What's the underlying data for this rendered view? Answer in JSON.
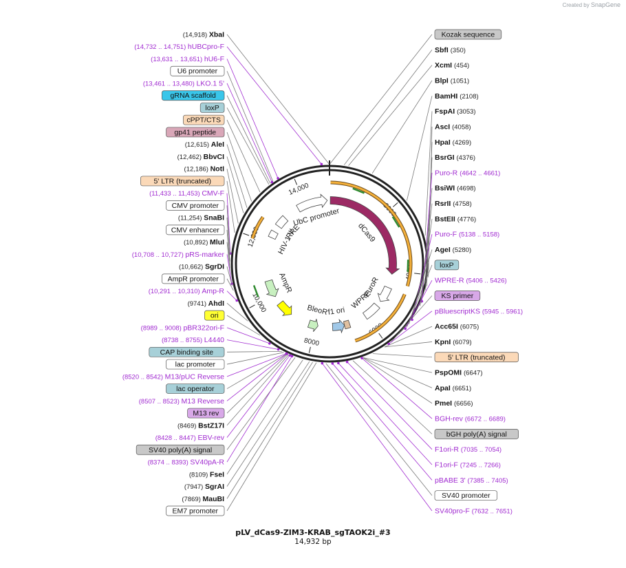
{
  "credit": {
    "prefix": "Created by",
    "brand": "SnapGene"
  },
  "title": "pLV_dCas9-ZIM3-KRAB_sgTAOK2i_#3",
  "length_label": "14,932 bp",
  "total_bp": 14932,
  "ruler_ticks": [
    {
      "label": "2000",
      "pos": 2000
    },
    {
      "label": "4000",
      "pos": 4000
    },
    {
      "label": "6000",
      "pos": 6000
    },
    {
      "label": "8000",
      "pos": 8000
    },
    {
      "label": "10,000",
      "pos": 10000
    },
    {
      "label": "12,000",
      "pos": 12000
    },
    {
      "label": "14,000",
      "pos": 14000
    }
  ],
  "labels": [
    {
      "name": "XbaI",
      "pos": "(14,918)",
      "bp": 14918,
      "kind": "enzyme",
      "side": "L"
    },
    {
      "name": "hUBCpro-F",
      "pos": "(14,732 .. 14,751)",
      "bp": 14741,
      "kind": "primer",
      "side": "L"
    },
    {
      "name": "hU6-F",
      "pos": "(13,631 .. 13,651)",
      "bp": 13641,
      "kind": "primer",
      "side": "L"
    },
    {
      "name": "U6 promoter",
      "bp": 13500,
      "kind": "box",
      "color": "#ffffff",
      "side": "L"
    },
    {
      "name": "LKO.1 5'",
      "pos": "(13,461 .. 13,480)",
      "bp": 13470,
      "kind": "primer",
      "side": "L"
    },
    {
      "name": "gRNA scaffold",
      "bp": 13420,
      "kind": "box",
      "color": "#39c6ea",
      "side": "L"
    },
    {
      "name": "loxP",
      "bp": 13380,
      "kind": "box",
      "color": "#a7d0d8",
      "side": "L"
    },
    {
      "name": "cPPT/CTS",
      "bp": 13100,
      "kind": "box",
      "color": "#fbd9b8",
      "side": "L"
    },
    {
      "name": "gp41 peptide",
      "bp": 12800,
      "kind": "box",
      "color": "#d9a7b8",
      "side": "L"
    },
    {
      "name": "AleI",
      "pos": "(12,615)",
      "bp": 12615,
      "kind": "enzyme",
      "side": "L"
    },
    {
      "name": "BbvCI",
      "pos": "(12,462)",
      "bp": 12462,
      "kind": "enzyme",
      "side": "L"
    },
    {
      "name": "NotI",
      "pos": "(12,186)",
      "bp": 12186,
      "kind": "enzyme",
      "side": "L"
    },
    {
      "name": "5' LTR (truncated)",
      "bp": 11950,
      "kind": "box",
      "color": "#fbd9b8",
      "side": "L"
    },
    {
      "name": "CMV-F",
      "pos": "(11,433 .. 11,453)",
      "bp": 11443,
      "kind": "primer",
      "side": "L"
    },
    {
      "name": "CMV promoter",
      "bp": 11400,
      "kind": "box",
      "color": "#ffffff",
      "side": "L"
    },
    {
      "name": "SnaBI",
      "pos": "(11,254)",
      "bp": 11254,
      "kind": "enzyme",
      "side": "L"
    },
    {
      "name": "CMV enhancer",
      "bp": 11100,
      "kind": "box",
      "color": "#ffffff",
      "side": "L"
    },
    {
      "name": "MluI",
      "pos": "(10,892)",
      "bp": 10892,
      "kind": "enzyme",
      "side": "L"
    },
    {
      "name": "pRS-marker",
      "pos": "(10,708 .. 10,727)",
      "bp": 10717,
      "kind": "primer",
      "side": "L"
    },
    {
      "name": "SgrDI",
      "pos": "(10,662)",
      "bp": 10662,
      "kind": "enzyme",
      "side": "L"
    },
    {
      "name": "AmpR promoter",
      "bp": 10550,
      "kind": "box",
      "color": "#ffffff",
      "side": "L"
    },
    {
      "name": "Amp-R",
      "pos": "(10,291 .. 10,310)",
      "bp": 10300,
      "kind": "primer",
      "side": "L"
    },
    {
      "name": "AhdI",
      "pos": "(9741)",
      "bp": 9741,
      "kind": "enzyme",
      "side": "L"
    },
    {
      "name": "ori",
      "bp": 9300,
      "kind": "box",
      "color": "#ffff33",
      "side": "L"
    },
    {
      "name": "pBR322ori-F",
      "pos": "(8989 .. 9008)",
      "bp": 8998,
      "kind": "primer",
      "side": "L"
    },
    {
      "name": "L4440",
      "pos": "(8738 .. 8755)",
      "bp": 8746,
      "kind": "primer",
      "side": "L"
    },
    {
      "name": "CAP binding site",
      "bp": 8650,
      "kind": "box",
      "color": "#a7d0d8",
      "side": "L"
    },
    {
      "name": "lac promoter",
      "bp": 8600,
      "kind": "box",
      "color": "#ffffff",
      "side": "L"
    },
    {
      "name": "M13/pUC Reverse",
      "pos": "(8520 .. 8542)",
      "bp": 8531,
      "kind": "primer",
      "side": "L"
    },
    {
      "name": "lac operator",
      "bp": 8520,
      "kind": "box",
      "color": "#a7d0d8",
      "side": "L"
    },
    {
      "name": "M13 Reverse",
      "pos": "(8507 .. 8523)",
      "bp": 8515,
      "kind": "primer",
      "side": "L"
    },
    {
      "name": "M13 rev",
      "bp": 8500,
      "kind": "box",
      "color": "#d8a8e8",
      "side": "L"
    },
    {
      "name": "BstZ17I",
      "pos": "(8469)",
      "bp": 8469,
      "kind": "enzyme",
      "side": "L"
    },
    {
      "name": "EBV-rev",
      "pos": "(8428 .. 8447)",
      "bp": 8437,
      "kind": "primer",
      "side": "L"
    },
    {
      "name": "SV40 poly(A) signal",
      "bp": 8300,
      "kind": "box",
      "color": "#c8c8c8",
      "side": "L"
    },
    {
      "name": "SV40pA-R",
      "pos": "(8374 .. 8393)",
      "bp": 8383,
      "kind": "primer",
      "side": "L"
    },
    {
      "name": "FseI",
      "pos": "(8109)",
      "bp": 8109,
      "kind": "enzyme",
      "side": "L"
    },
    {
      "name": "SgrAI",
      "pos": "(7947)",
      "bp": 7947,
      "kind": "enzyme",
      "side": "L"
    },
    {
      "name": "MauBI",
      "pos": "(7869)",
      "bp": 7869,
      "kind": "enzyme",
      "side": "L"
    },
    {
      "name": "EM7 promoter",
      "bp": 7780,
      "kind": "box",
      "color": "#ffffff",
      "side": "L"
    },
    {
      "name": "SV40pro-F",
      "pos": "(7632 .. 7651)",
      "bp": 7641,
      "kind": "primer",
      "side": "R"
    },
    {
      "name": "SV40 promoter",
      "bp": 7550,
      "kind": "box",
      "color": "#ffffff",
      "side": "R"
    },
    {
      "name": "pBABE 3'",
      "pos": "(7385 .. 7405)",
      "bp": 7395,
      "kind": "primer",
      "side": "R"
    },
    {
      "name": "F1ori-F",
      "pos": "(7245 .. 7266)",
      "bp": 7255,
      "kind": "primer",
      "side": "R"
    },
    {
      "name": "F1ori-R",
      "pos": "(7035 .. 7054)",
      "bp": 7044,
      "kind": "primer",
      "side": "R"
    },
    {
      "name": "bGH poly(A) signal",
      "bp": 6900,
      "kind": "box",
      "color": "#c8c8c8",
      "side": "R"
    },
    {
      "name": "BGH-rev",
      "pos": "(6672 .. 6689)",
      "bp": 6680,
      "kind": "primer",
      "side": "R"
    },
    {
      "name": "PmeI",
      "pos": "(6656)",
      "bp": 6656,
      "kind": "enzyme",
      "side": "R"
    },
    {
      "name": "ApaI",
      "pos": "(6651)",
      "bp": 6651,
      "kind": "enzyme",
      "side": "R"
    },
    {
      "name": "PspOMI",
      "pos": "(6647)",
      "bp": 6647,
      "kind": "enzyme",
      "side": "R"
    },
    {
      "name": "5' LTR (truncated)",
      "bp": 6400,
      "kind": "box",
      "color": "#fbd9b8",
      "side": "R"
    },
    {
      "name": "KpnI",
      "pos": "(6079)",
      "bp": 6079,
      "kind": "enzyme",
      "side": "R"
    },
    {
      "name": "Acc65I",
      "pos": "(6075)",
      "bp": 6075,
      "kind": "enzyme",
      "side": "R"
    },
    {
      "name": "pBluescriptKS",
      "pos": "(5945 .. 5961)",
      "bp": 5953,
      "kind": "primer",
      "side": "R"
    },
    {
      "name": "KS primer",
      "bp": 5900,
      "kind": "box",
      "color": "#d8a8e8",
      "side": "R"
    },
    {
      "name": "WPRE-R",
      "pos": "(5406 .. 5426)",
      "bp": 5416,
      "kind": "primer",
      "side": "R"
    },
    {
      "name": "loxP",
      "bp": 5350,
      "kind": "box",
      "color": "#a7d0d8",
      "side": "R"
    },
    {
      "name": "AgeI",
      "pos": "(5280)",
      "bp": 5280,
      "kind": "enzyme",
      "side": "R"
    },
    {
      "name": "Puro-F",
      "pos": "(5138 .. 5158)",
      "bp": 5148,
      "kind": "primer",
      "side": "R"
    },
    {
      "name": "BstEII",
      "pos": "(4776)",
      "bp": 4776,
      "kind": "enzyme",
      "side": "R"
    },
    {
      "name": "RsrII",
      "pos": "(4758)",
      "bp": 4758,
      "kind": "enzyme",
      "side": "R"
    },
    {
      "name": "BsiWI",
      "pos": "(4698)",
      "bp": 4698,
      "kind": "enzyme",
      "side": "R"
    },
    {
      "name": "Puro-R",
      "pos": "(4642 .. 4661)",
      "bp": 4651,
      "kind": "primer",
      "side": "R"
    },
    {
      "name": "BsrGI",
      "pos": "(4376)",
      "bp": 4376,
      "kind": "enzyme",
      "side": "R"
    },
    {
      "name": "HpaI",
      "pos": "(4269)",
      "bp": 4269,
      "kind": "enzyme",
      "side": "R"
    },
    {
      "name": "AscI",
      "pos": "(4058)",
      "bp": 4058,
      "kind": "enzyme",
      "side": "R"
    },
    {
      "name": "FspAI",
      "pos": "(3053)",
      "bp": 3053,
      "kind": "enzyme",
      "side": "R"
    },
    {
      "name": "BamHI",
      "pos": "(2108)",
      "bp": 2108,
      "kind": "enzyme",
      "side": "R"
    },
    {
      "name": "BlpI",
      "pos": "(1051)",
      "bp": 1051,
      "kind": "enzyme",
      "side": "R"
    },
    {
      "name": "XcmI",
      "pos": "(454)",
      "bp": 454,
      "kind": "enzyme",
      "side": "R"
    },
    {
      "name": "SbfI",
      "pos": "(350)",
      "bp": 350,
      "kind": "enzyme",
      "side": "R"
    },
    {
      "name": "Kozak sequence",
      "bp": 10,
      "kind": "box",
      "color": "#c8c8c8",
      "side": "R"
    }
  ],
  "features": [
    {
      "name": "dCas9",
      "start": 30,
      "end": 4130,
      "color": "#9c2a64",
      "dir": 1,
      "track": 0,
      "label": "dCas9"
    },
    {
      "name": "PuroR",
      "start": 4650,
      "end": 5250,
      "color": "#ffffff",
      "dir": 1,
      "track": 0,
      "label": "PuroR"
    },
    {
      "name": "WPRE",
      "start": 5450,
      "end": 6050,
      "color": "#ffffff",
      "dir": 0,
      "track": 0,
      "label": "WPRE"
    },
    {
      "name": "f1 ori",
      "start": 6900,
      "end": 7350,
      "color": "#a0c8e8",
      "dir": -1,
      "track": 0,
      "label": "f1 ori"
    },
    {
      "name": "BleoR",
      "start": 7900,
      "end": 8250,
      "color": "#c8f0c0",
      "dir": -1,
      "track": 0,
      "label": "BleoR"
    },
    {
      "name": "AmpR",
      "start": 9900,
      "end": 10550,
      "color": "#c8f0c0",
      "dir": -1,
      "track": 0,
      "label": "AmpR"
    },
    {
      "name": "HIV-1 Ψ",
      "start": 12200,
      "end": 12450,
      "color": "#ffffff",
      "dir": 0,
      "track": 0,
      "label": "HIV-1 Ψ"
    },
    {
      "name": "RRE",
      "start": 12700,
      "end": 13100,
      "color": "#ffffff",
      "dir": 0,
      "track": 0,
      "label": "RRE"
    },
    {
      "name": "UbC promoter",
      "start": 13700,
      "end": 14850,
      "color": "#ffffff",
      "dir": 1,
      "track": 0,
      "label": "UbC promoter"
    },
    {
      "name": "ori-block",
      "start": 9000,
      "end": 9600,
      "color": "#ffff00",
      "dir": -1,
      "track": 0,
      "label": ""
    },
    {
      "name": "bGH",
      "start": 6700,
      "end": 6900,
      "color": "#e0c0a0",
      "dir": 0,
      "track": 0,
      "label": ""
    }
  ],
  "orange_arcs": [
    {
      "start": 30,
      "end": 4400
    },
    {
      "start": 4650,
      "end": 6250
    },
    {
      "start": 6250,
      "end": 6700
    },
    {
      "start": 11950,
      "end": 12650
    }
  ]
}
